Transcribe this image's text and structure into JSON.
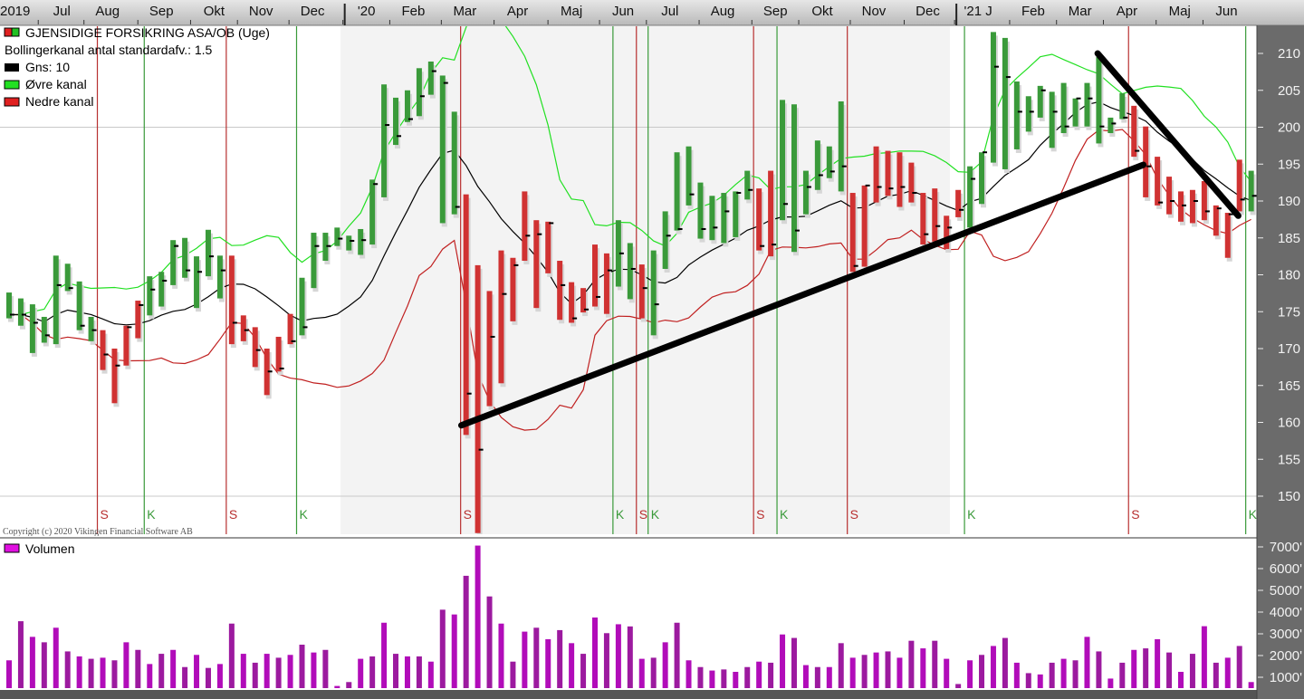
{
  "title": "GJENSIDIGE FORSIKRING ASA/OB (Uge)",
  "legend": {
    "bollinger": "Bollingerkanal antal standardafv.: 1.5",
    "ma": "Gns: 10",
    "upper": "Øvre kanal",
    "lower": "Nedre kanal",
    "volume": "Volumen"
  },
  "copyright": "Copyright (c) 2020 Vikingen Financial Software AB",
  "colors": {
    "up_regime": "#3a9a3a",
    "down_regime": "#d03232",
    "ma_line": "#000000",
    "upper_band": "#22e022",
    "lower_band": "#c02020",
    "volume": "#b10cb9",
    "axis_panel": "#6b6b6b",
    "year_shade": "#f3f3f3"
  },
  "chart_data": [
    {
      "type": "bar",
      "style": "ohlc-weekly",
      "title": "GJENSIDIGE FORSIKRING ASA/OB (Uge)",
      "ylim": [
        145,
        213
      ],
      "y_ticks": [
        "150",
        "155",
        "160",
        "165",
        "170",
        "175",
        "180",
        "185",
        "190",
        "195",
        "200",
        "205",
        "210"
      ],
      "gridlines": [
        150,
        200
      ],
      "x_ticks": [
        {
          "label": "2019",
          "week": 0.3
        },
        {
          "label": "Jul",
          "week": 4.5
        },
        {
          "label": "Aug",
          "week": 8.4
        },
        {
          "label": "Sep",
          "week": 13
        },
        {
          "label": "Okt",
          "week": 17.5
        },
        {
          "label": "Nov",
          "week": 21.5
        },
        {
          "label": "Dec",
          "week": 25.9
        },
        {
          "label": "'20",
          "week": 30.5
        },
        {
          "label": "Feb",
          "week": 34.5
        },
        {
          "label": "Mar",
          "week": 38.9
        },
        {
          "label": "Apr",
          "week": 43.4
        },
        {
          "label": "Maj",
          "week": 48
        },
        {
          "label": "Jun",
          "week": 52.4
        },
        {
          "label": "Jul",
          "week": 56.4
        },
        {
          "label": "Aug",
          "week": 60.9
        },
        {
          "label": "Sep",
          "week": 65.4
        },
        {
          "label": "Okt",
          "week": 69.4
        },
        {
          "label": "Nov",
          "week": 73.8
        },
        {
          "label": "Dec",
          "week": 78.4
        },
        {
          "label": "'21 J",
          "week": 82.7
        },
        {
          "label": "Feb",
          "week": 87.4
        },
        {
          "label": "Mar",
          "week": 91.4
        },
        {
          "label": "Apr",
          "week": 95.4
        },
        {
          "label": "Maj",
          "week": 99.9
        },
        {
          "label": "Jun",
          "week": 103.9
        }
      ],
      "year_2020_weeks": [
        28.6,
        80.6
      ],
      "bollinger": {
        "period": 10,
        "stdev": 1.5
      },
      "high": [
        177.6,
        176.8,
        176.0,
        174.3,
        182.6,
        181.5,
        179.1,
        174.3,
        172.5,
        170.0,
        173.1,
        176.5,
        179.8,
        180.4,
        184.7,
        185.0,
        182.5,
        186.1,
        182.6,
        182.6,
        174.5,
        172.9,
        170.0,
        171.6,
        174.7,
        179.6,
        185.7,
        185.7,
        186.4,
        185.3,
        186.2,
        192.9,
        205.8,
        204.0,
        205.0,
        208.0,
        208.9,
        207.0,
        202.1,
        190.9,
        181.3,
        177.8,
        183.3,
        182.3,
        191.3,
        187.4,
        187.2,
        181.9,
        179.0,
        178.2,
        184.1,
        182.9,
        187.4,
        184.3,
        181.4,
        183.3,
        188.6,
        196.6,
        197.4,
        192.5,
        190.7,
        191.1,
        191.3,
        194.1,
        191.7,
        194.1,
        203.7,
        203.1,
        194.1,
        198.2,
        197.4,
        203.5,
        191.1,
        192.1,
        197.4,
        196.8,
        196.6,
        195.2,
        191.1,
        191.7,
        188.0,
        191.5,
        194.7,
        196.6,
        212.9,
        212.1,
        206.2,
        204.2,
        205.6,
        204.8,
        206.0,
        203.9,
        206.0,
        209.5,
        201.3,
        204.6,
        202.9,
        200.1,
        196.0,
        193.3,
        191.3,
        191.5,
        192.7,
        189.4,
        188.4,
        195.6,
        194.1
      ],
      "low": [
        174.1,
        173.1,
        169.4,
        170.8,
        170.6,
        177.8,
        172.5,
        171.0,
        167.1,
        162.6,
        167.7,
        171.4,
        174.5,
        175.7,
        178.6,
        179.6,
        175.5,
        179.8,
        176.8,
        170.6,
        171.0,
        167.5,
        163.7,
        166.9,
        170.6,
        171.8,
        178.2,
        181.9,
        183.9,
        183.3,
        182.7,
        184.1,
        190.5,
        197.6,
        200.7,
        201.5,
        204.4,
        187.0,
        188.2,
        158.3,
        145.0,
        162.2,
        165.3,
        173.7,
        181.9,
        175.5,
        180.2,
        173.9,
        173.5,
        174.9,
        175.7,
        174.7,
        178.4,
        176.7,
        174.1,
        171.8,
        180.8,
        186.0,
        189.4,
        184.9,
        184.7,
        184.3,
        185.1,
        190.2,
        183.3,
        182.5,
        187.4,
        183.1,
        188.2,
        191.5,
        193.1,
        191.3,
        180.4,
        181.1,
        189.8,
        190.7,
        189.2,
        189.8,
        184.1,
        184.5,
        183.5,
        187.8,
        186.4,
        189.6,
        195.2,
        194.3,
        197.0,
        199.4,
        201.3,
        197.2,
        199.2,
        200.1,
        200.1,
        197.8,
        199.2,
        201.1,
        196.0,
        190.5,
        189.4,
        188.2,
        187.2,
        187.0,
        187.4,
        185.3,
        182.3,
        188.6,
        188.6
      ],
      "close": [
        174.6,
        174.6,
        173.5,
        171.8,
        178.6,
        178.2,
        173.1,
        172.5,
        169.2,
        167.7,
        172.9,
        175.9,
        178.0,
        179.2,
        183.9,
        180.6,
        180.4,
        182.5,
        180.6,
        173.5,
        172.5,
        169.8,
        166.9,
        167.3,
        171.0,
        172.9,
        183.9,
        183.9,
        184.9,
        184.6,
        184.7,
        192.3,
        200.3,
        198.8,
        201.1,
        204.2,
        207.6,
        206.0,
        189.2,
        163.9,
        156.3,
        171.6,
        177.4,
        181.3,
        185.3,
        185.5,
        187.0,
        178.6,
        174.1,
        175.3,
        177.0,
        180.6,
        182.9,
        180.8,
        178.2,
        176.0,
        185.3,
        186.2,
        190.9,
        186.2,
        186.4,
        188.6,
        191.1,
        191.5,
        183.9,
        184.1,
        189.6,
        186.0,
        191.9,
        193.5,
        194.0,
        194.7,
        181.2,
        192.1,
        191.9,
        191.7,
        191.9,
        191.1,
        185.5,
        186.6,
        186.4,
        188.8,
        193.0,
        196.6,
        208.2,
        206.8,
        202.1,
        202.1,
        205.0,
        202.1,
        200.1,
        203.9,
        203.9,
        200.1,
        200.5,
        201.3,
        196.8,
        194.7,
        189.8,
        190.0,
        189.4,
        190.0,
        188.6,
        189.0,
        188.2,
        190.2,
        190.7
      ],
      "signals": [
        {
          "label": "S",
          "before_week": 8
        },
        {
          "label": "K",
          "before_week": 12
        },
        {
          "label": "S",
          "before_week": 19
        },
        {
          "label": "K",
          "before_week": 25
        },
        {
          "label": "S",
          "before_week": 39
        },
        {
          "label": "K",
          "before_week": 52
        },
        {
          "label": "S",
          "before_week": 54
        },
        {
          "label": "K",
          "before_week": 55
        },
        {
          "label": "S",
          "before_week": 64
        },
        {
          "label": "K",
          "before_week": 66
        },
        {
          "label": "S",
          "before_week": 72
        },
        {
          "label": "K",
          "before_week": 82
        },
        {
          "label": "S",
          "before_week": 96
        },
        {
          "label": "K",
          "before_week": 106
        }
      ],
      "trendlines": [
        {
          "from": [
            38.6,
            159.6
          ],
          "to": [
            96.8,
            194.9
          ]
        },
        {
          "from": [
            92.9,
            210.0
          ],
          "to": [
            104.9,
            188.0
          ]
        }
      ]
    },
    {
      "type": "bar",
      "title": "Volumen",
      "ylim": [
        0,
        7300
      ],
      "y_ticks": [
        "1000'",
        "2000'",
        "3000'",
        "4000'",
        "5000'",
        "6000'",
        "7000'"
      ],
      "values": [
        1780,
        3580,
        2860,
        2610,
        3280,
        2190,
        1960,
        1850,
        1900,
        1780,
        2610,
        2260,
        1610,
        2080,
        2260,
        1470,
        2030,
        1430,
        1610,
        3470,
        2080,
        1670,
        2080,
        1900,
        2030,
        2500,
        2140,
        2260,
        600,
        780,
        1850,
        1960,
        3510,
        2080,
        1960,
        1960,
        1720,
        4110,
        3890,
        5670,
        7060,
        4720,
        3470,
        1720,
        3100,
        3280,
        2750,
        3170,
        2570,
        2080,
        3750,
        3030,
        3440,
        3340,
        1850,
        1900,
        2610,
        3510,
        1780,
        1470,
        1310,
        1360,
        1250,
        1470,
        1720,
        1670,
        2970,
        2810,
        1560,
        1470,
        1470,
        2570,
        1900,
        2030,
        2140,
        2190,
        1900,
        2680,
        2330,
        2680,
        1850,
        690,
        1780,
        2030,
        2440,
        2810,
        1670,
        1190,
        1130,
        1670,
        1850,
        1780,
        2860,
        2190,
        940,
        1670,
        2260,
        2330,
        2750,
        2140,
        1250,
        2080,
        3350,
        1670,
        1900,
        2440,
        780
      ]
    }
  ]
}
